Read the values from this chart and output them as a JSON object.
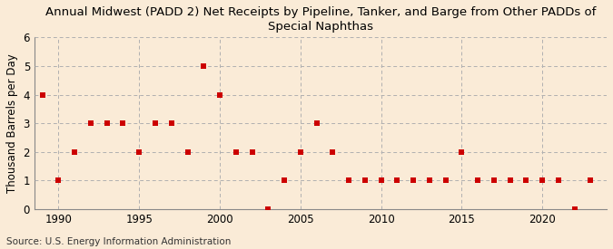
{
  "title": "Annual Midwest (PADD 2) Net Receipts by Pipeline, Tanker, and Barge from Other PADDs of\nSpecial Naphthas",
  "ylabel": "Thousand Barrels per Day",
  "source": "Source: U.S. Energy Information Administration",
  "background_color": "#faebd7",
  "years": [
    1989,
    1990,
    1991,
    1992,
    1993,
    1994,
    1995,
    1996,
    1997,
    1998,
    1999,
    2000,
    2001,
    2002,
    2003,
    2004,
    2005,
    2006,
    2007,
    2008,
    2009,
    2010,
    2011,
    2012,
    2013,
    2014,
    2015,
    2016,
    2017,
    2018,
    2019,
    2020,
    2021,
    2022,
    2023
  ],
  "values": [
    4,
    1,
    2,
    3,
    3,
    3,
    2,
    3,
    3,
    2,
    5,
    4,
    2,
    2,
    0,
    1,
    2,
    3,
    2,
    1,
    1,
    1,
    1,
    1,
    1,
    1,
    2,
    1,
    1,
    1,
    1,
    1,
    1,
    0,
    1
  ],
  "marker_color": "#cc0000",
  "marker_size": 16,
  "xlim": [
    1988.5,
    2024
  ],
  "ylim": [
    0,
    6
  ],
  "yticks": [
    0,
    1,
    2,
    3,
    4,
    5,
    6
  ],
  "xticks": [
    1990,
    1995,
    2000,
    2005,
    2010,
    2015,
    2020
  ],
  "grid_color": "#b0b0b0",
  "title_fontsize": 9.5,
  "axis_fontsize": 8.5,
  "source_fontsize": 7.5
}
